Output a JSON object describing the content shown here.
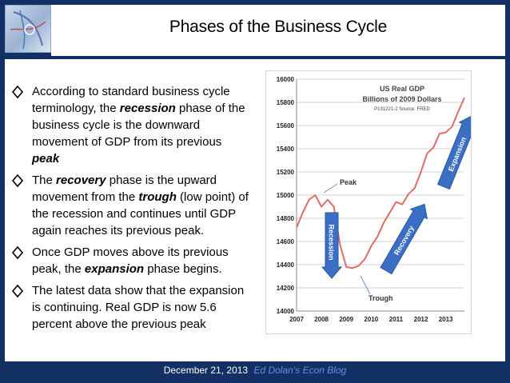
{
  "slide": {
    "title": "Phases of the Business Cycle",
    "bullets": [
      {
        "parts": [
          {
            "t": "According to standard business cycle terminology, the ",
            "b": false
          },
          {
            "t": "recession",
            "b": true
          },
          {
            "t": " phase of the business cycle is the downward movement of GDP from its previous ",
            "b": false
          },
          {
            "t": "peak",
            "b": true
          }
        ]
      },
      {
        "parts": [
          {
            "t": "The ",
            "b": false
          },
          {
            "t": "recovery",
            "b": true
          },
          {
            "t": " phase is the upward movement from the ",
            "b": false
          },
          {
            "t": "trough",
            "b": true
          },
          {
            "t": " (low point) of the recession and continues until GDP again reaches its previous peak.",
            "b": false
          }
        ]
      },
      {
        "parts": [
          {
            "t": "Once GDP moves above its previous peak, the ",
            "b": false
          },
          {
            "t": "expansion",
            "b": true
          },
          {
            "t": " phase begins.",
            "b": false
          }
        ]
      },
      {
        "parts": [
          {
            "t": "The latest data show that the expansion is continuing. Real GDP is now 5.6 percent above the previous peak",
            "b": false
          }
        ]
      }
    ],
    "footer": {
      "date": "December 21, 2013",
      "blog": "Ed Dolan’s Econ Blog"
    }
  },
  "chart_data": {
    "type": "line",
    "title": "US Real GDP",
    "subtitle": "Billions of 2009  Dollars",
    "source": "P131221-2 Source: FRED",
    "x_tick_labels": [
      "2007",
      "2008",
      "2009",
      "2010",
      "2011",
      "2012",
      "2013"
    ],
    "y_ticks": [
      14000,
      14200,
      14400,
      14600,
      14800,
      15000,
      15200,
      15400,
      15600,
      15800,
      16000
    ],
    "ylim": [
      14000,
      16000
    ],
    "xlim": [
      2007,
      2013.75
    ],
    "series": [
      {
        "x": [
          2007.0,
          2007.25,
          2007.5,
          2007.75,
          2008.0,
          2008.25,
          2008.5,
          2008.75,
          2009.0,
          2009.25,
          2009.5,
          2009.75,
          2010.0,
          2010.25,
          2010.5,
          2010.75,
          2011.0,
          2011.25,
          2011.5,
          2011.75,
          2012.0,
          2012.25,
          2012.5,
          2012.75,
          2013.0,
          2013.25,
          2013.5,
          2013.75
        ],
        "values": [
          14720,
          14850,
          14960,
          15000,
          14900,
          14960,
          14900,
          14570,
          14380,
          14370,
          14390,
          14450,
          14560,
          14640,
          14760,
          14850,
          14940,
          14920,
          15010,
          15060,
          15200,
          15360,
          15410,
          15530,
          15540,
          15590,
          15720,
          15840
        ],
        "color": "#e06c66"
      }
    ],
    "annotations": [
      {
        "text": "Peak"
      },
      {
        "text": "Trough"
      },
      {
        "text": "Recession",
        "color": "#3b6fc4"
      },
      {
        "text": "Recovery",
        "color": "#3b6fc4"
      },
      {
        "text": "Expansion",
        "color": "#3b6fc4"
      }
    ],
    "grid": true
  }
}
